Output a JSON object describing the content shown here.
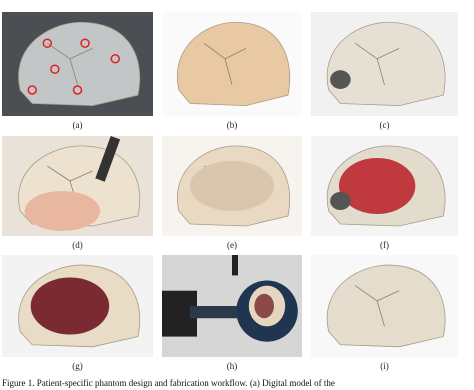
{
  "panels": [
    {
      "label": "(a)"
    },
    {
      "label": "(b)"
    },
    {
      "label": "(c)"
    },
    {
      "label": "(d)"
    },
    {
      "label": "(e)"
    },
    {
      "label": "(f)"
    },
    {
      "label": "(g)"
    },
    {
      "label": "(h)"
    },
    {
      "label": "(i)"
    }
  ],
  "caption": "Figure 1. Patient-specific phantom design and fabrication workflow. (a) Digital model of the"
}
